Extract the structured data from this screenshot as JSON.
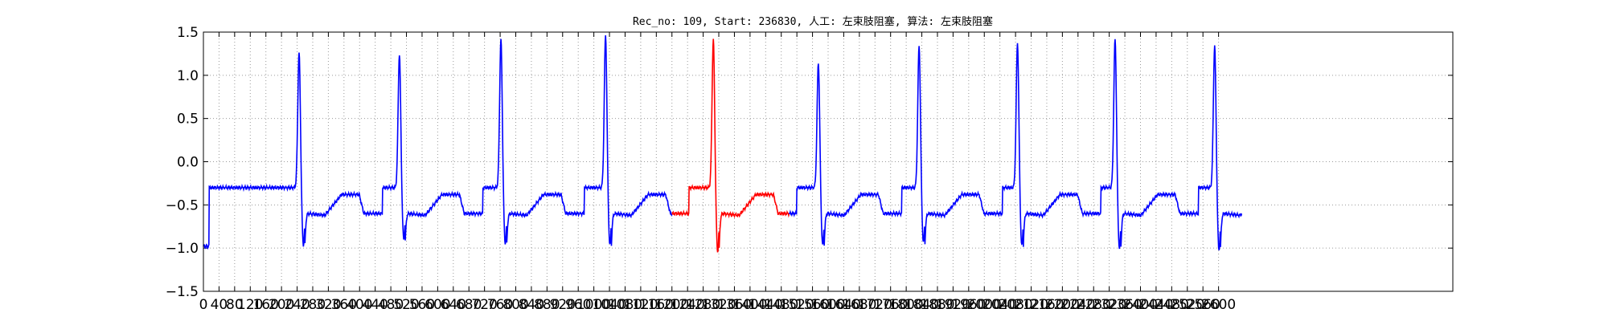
{
  "chart_data": {
    "type": "line",
    "title": "Rec_no: 109, Start: 236830, 人工: 左束肢阻塞, 算法: 左束肢阻塞",
    "xlabel": "",
    "ylabel": "",
    "xlim": [
      0,
      3200
    ],
    "ylim": [
      -1.5,
      1.5
    ],
    "y_ticks": [
      "−1.5",
      "−1.0",
      "−0.5",
      "0.0",
      "0.5",
      "1.0",
      "1.5"
    ],
    "x_tick_step": 40,
    "x_tick_max": 2600,
    "grid": true,
    "grid_style": "dotted",
    "highlight_range": [
      1200,
      1500
    ],
    "colors": {
      "normal": "#0000ff",
      "highlight": "#ff0000",
      "grid": "#9a9a9a",
      "frame": "#000000"
    },
    "beats": [
      {
        "r_x": 245,
        "r_y": 1.27,
        "s_y": -0.97
      },
      {
        "r_x": 502,
        "r_y": 1.25,
        "s_y": -0.9
      },
      {
        "r_x": 762,
        "r_y": 1.42,
        "s_y": -0.95
      },
      {
        "r_x": 1030,
        "r_y": 1.47,
        "s_y": -0.97
      },
      {
        "r_x": 1306,
        "r_y": 1.42,
        "s_y": -1.05
      },
      {
        "r_x": 1575,
        "r_y": 1.15,
        "s_y": -0.97
      },
      {
        "r_x": 1833,
        "r_y": 1.35,
        "s_y": -0.94
      },
      {
        "r_x": 2085,
        "r_y": 1.38,
        "s_y": -0.98
      },
      {
        "r_x": 2335,
        "r_y": 1.43,
        "s_y": -1.01
      },
      {
        "r_x": 2590,
        "r_y": 1.35,
        "s_y": -1.03
      }
    ]
  }
}
